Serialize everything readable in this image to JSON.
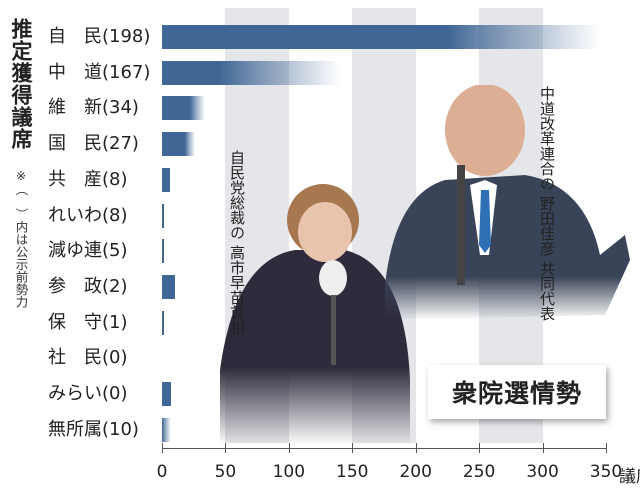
{
  "chart_data": {
    "type": "bar",
    "orientation": "horizontal",
    "title": "推定獲得議席",
    "note": "※（　）内は公示前勢力",
    "axis_unit": "議席",
    "xlim": [
      0,
      350
    ],
    "x_ticks": [
      "0",
      "50",
      "100",
      "150",
      "200",
      "250",
      "300",
      "350"
    ],
    "grid": "alternating shaded bands every 50",
    "categories": [
      "自　民(198)",
      "中　道(167)",
      "維　新(34)",
      "国　民(27)",
      "共　産(8)",
      "れいわ(8)",
      "減ゆ連(5)",
      "参　政(2)",
      "保　守(1)",
      "社　民(0)",
      "みらい(0)",
      "無所属(10)"
    ],
    "pre_election_seats": [
      198,
      167,
      34,
      27,
      8,
      8,
      5,
      2,
      1,
      0,
      0,
      10
    ],
    "series": [
      {
        "role": "estimated range (solid = low end, gradient fade = upper end)",
        "low": [
          225,
          45,
          22,
          18,
          6,
          1,
          1,
          10,
          1,
          0,
          7,
          0
        ],
        "high": [
          345,
          140,
          34,
          26,
          6,
          1,
          1,
          10,
          1,
          0,
          7,
          7
        ]
      }
    ],
    "colors": {
      "bar": "#3f6695",
      "band": "#e4e6e9"
    }
  },
  "captions": {
    "takaichi": [
      "自民党総裁の",
      "高市早苗首相"
    ],
    "noda": [
      "中道改革連合の",
      "野田佳彦",
      "共同代表"
    ]
  },
  "badge": "衆院選情勢"
}
